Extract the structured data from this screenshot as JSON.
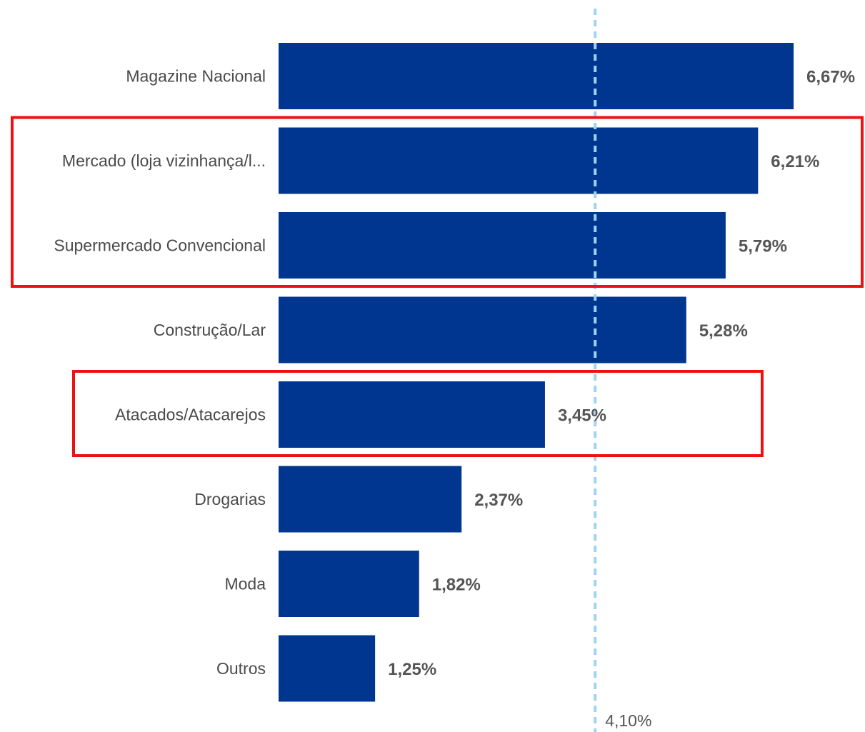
{
  "chart_data": {
    "type": "bar",
    "orientation": "horizontal",
    "categories": [
      "Magazine Nacional",
      "Mercado (loja vizinhança/l...",
      "Supermercado Convencional",
      "Construção/Lar",
      "Atacados/Atacarejos",
      "Drogarias",
      "Moda",
      "Outros"
    ],
    "values": [
      6.67,
      6.21,
      5.79,
      5.28,
      3.45,
      2.37,
      1.82,
      1.25
    ],
    "value_labels": [
      "6,67%",
      "6,21%",
      "5,79%",
      "5,28%",
      "3,45%",
      "2,37%",
      "1,82%",
      "1,25%"
    ],
    "xlim": [
      0,
      7
    ],
    "bar_color": "#00368f",
    "reference_line": {
      "value": 4.1,
      "label": "4,10%",
      "color": "#9fd3f3",
      "style": "dashed"
    },
    "highlight_boxes": [
      {
        "categories": [
          "Mercado (loja vizinhança/l...",
          "Supermercado Convencional"
        ],
        "color": "#ee1111"
      },
      {
        "categories": [
          "Atacados/Atacarejos"
        ],
        "color": "#ee1111"
      }
    ],
    "title": "",
    "xlabel": "",
    "ylabel": ""
  }
}
